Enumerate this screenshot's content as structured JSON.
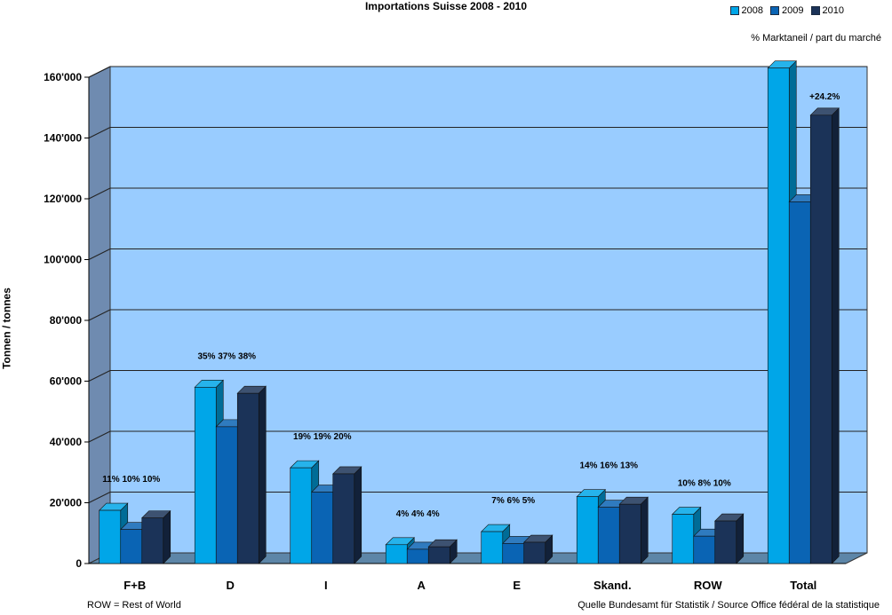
{
  "header": {
    "title": "Importations Suisse 2008 - 2010",
    "market_share_note": "% Marktaneil / part du marché"
  },
  "footer": {
    "left_note": "ROW = Rest of World",
    "source": "Quelle Bundesamt für Statistik / Source Office fédéral de la statistique"
  },
  "chart_data": {
    "type": "bar",
    "title": "Importations Suisse 2008 - 2010",
    "xlabel": "",
    "ylabel": "Tonnen / tonnes",
    "ylim": [
      0,
      160000
    ],
    "yticks": [
      "0",
      "20'000",
      "40'000",
      "60'000",
      "80'000",
      "100'000",
      "120'000",
      "140'000",
      "160'000"
    ],
    "grid": true,
    "legend_position": "top-right",
    "categories": [
      "F+B",
      "D",
      "I",
      "A",
      "E",
      "Skand.",
      "ROW",
      "Total"
    ],
    "series": [
      {
        "name": "2008",
        "color": "#00a6e8",
        "values": [
          17500,
          58000,
          31500,
          6200,
          10500,
          22000,
          16200,
          163000
        ]
      },
      {
        "name": "2009",
        "color": "#0a64b4",
        "values": [
          11200,
          45000,
          23500,
          4700,
          6600,
          18500,
          9000,
          119000
        ]
      },
      {
        "name": "2010",
        "color": "#1b3358",
        "values": [
          15000,
          56000,
          29500,
          5500,
          7000,
          19500,
          14000,
          147500
        ]
      }
    ],
    "annotations": [
      "11% 10% 10%",
      "35% 37% 38%",
      "19% 19% 20%",
      "4%  4%  4%",
      "7%  6%  5%",
      "14% 16% 13%",
      "10%  8% 10%",
      "+24.2%"
    ],
    "plot_background": "#99ccff",
    "floor_color": "#5d86a8",
    "wall_color": "#6f8bb0"
  }
}
